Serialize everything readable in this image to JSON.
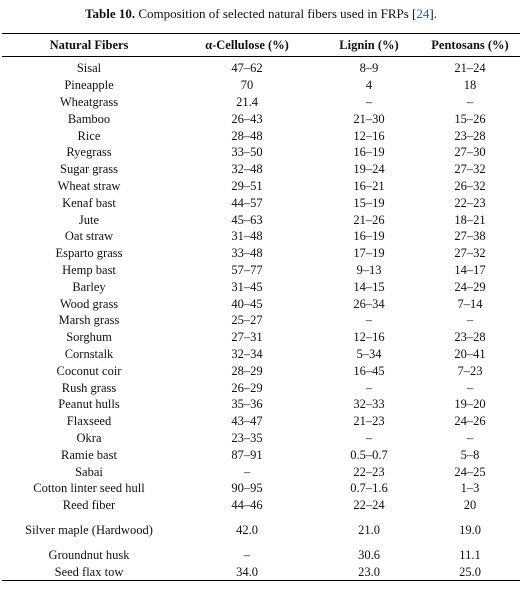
{
  "caption": {
    "label": "Table 10.",
    "text": "Composition of selected natural fibers used in FRPs",
    "ref_open": "[",
    "ref": "24",
    "ref_close": "]."
  },
  "table": {
    "headers": [
      "Natural Fibers",
      "α-Cellulose (%)",
      "Lignin (%)",
      "Pentosans (%)"
    ],
    "rows": [
      [
        "Sisal",
        "47–62",
        "8–9",
        "21–24"
      ],
      [
        "Pineapple",
        "70",
        "4",
        "18"
      ],
      [
        "Wheatgrass",
        "21.4",
        "–",
        "–"
      ],
      [
        "Bamboo",
        "26–43",
        "21–30",
        "15–26"
      ],
      [
        "Rice",
        "28–48",
        "12–16",
        "23–28"
      ],
      [
        "Ryegrass",
        "33–50",
        "16–19",
        "27–30"
      ],
      [
        "Sugar grass",
        "32–48",
        "19–24",
        "27–32"
      ],
      [
        "Wheat straw",
        "29–51",
        "16–21",
        "26–32"
      ],
      [
        "Kenaf bast",
        "44–57",
        "15–19",
        "22–23"
      ],
      [
        "Jute",
        "45–63",
        "21–26",
        "18–21"
      ],
      [
        "Oat straw",
        "31–48",
        "16–19",
        "27–38"
      ],
      [
        "Esparto grass",
        "33–48",
        "17–19",
        "27–32"
      ],
      [
        "Hemp bast",
        "57–77",
        "9–13",
        "14–17"
      ],
      [
        "Barley",
        "31–45",
        "14–15",
        "24–29"
      ],
      [
        "Wood grass",
        "40–45",
        "26–34",
        "7–14"
      ],
      [
        "Marsh grass",
        "25–27",
        "–",
        "–"
      ],
      [
        "Sorghum",
        "27–31",
        "12–16",
        "23–28"
      ],
      [
        "Cornstalk",
        "32–34",
        "5–34",
        "20–41"
      ],
      [
        "Coconut coir",
        "28–29",
        "16–45",
        "7–23"
      ],
      [
        "Rush grass",
        "26–29",
        "–",
        "–"
      ],
      [
        "Peanut hulls",
        "35–36",
        "32–33",
        "19–20"
      ],
      [
        "Flaxseed",
        "43–47",
        "21–23",
        "24–26"
      ],
      [
        "Okra",
        "23–35",
        "–",
        "–"
      ],
      [
        "Ramie bast",
        "87–91",
        "0.5–0.7",
        "5–8"
      ],
      [
        "Sabai",
        "–",
        "22–23",
        "24–25"
      ],
      [
        "Cotton linter seed hull",
        "90–95",
        "0.7–1.6",
        "1–3"
      ],
      [
        "Reed fiber",
        "44–46",
        "22–24",
        "20"
      ],
      [
        "Silver maple (Hardwood)",
        "42.0",
        "21.0",
        "19.0"
      ],
      [
        "Groundnut husk",
        "–",
        "30.6",
        "11.1"
      ],
      [
        "Seed flax tow",
        "34.0",
        "23.0",
        "25.0"
      ]
    ]
  }
}
